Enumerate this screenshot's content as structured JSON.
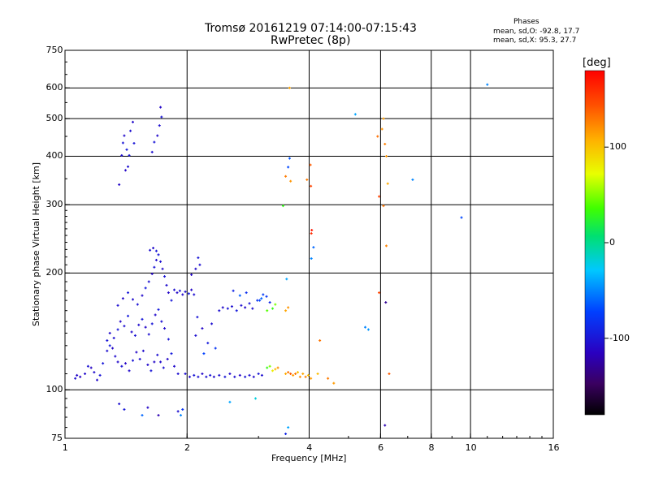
{
  "chart_data": {
    "type": "scatter",
    "title": "Tromsø 20161219 07:14:00-07:15:43",
    "subtitle": "RwPretec (8p)",
    "phases": {
      "heading": "Phases",
      "line_o": "mean, sd,O: -92.8, 17.7",
      "line_x": "mean, sd,X:  95.3, 27.7"
    },
    "xlabel": "Frequency [MHz]",
    "ylabel": "Stationary phase Virtual Height [km]",
    "x_scale": "log",
    "y_scale": "log",
    "xlim": [
      1,
      16
    ],
    "ylim": [
      75,
      750
    ],
    "x_ticks": [
      {
        "value": 1,
        "label": "1"
      },
      {
        "value": 2,
        "label": "2"
      },
      {
        "value": 4,
        "label": "4"
      },
      {
        "value": 6,
        "label": "6"
      },
      {
        "value": 8,
        "label": "8"
      },
      {
        "value": 10,
        "label": "10"
      },
      {
        "value": 16,
        "label": "16"
      }
    ],
    "y_ticks": [
      {
        "value": 75,
        "label": "75"
      },
      {
        "value": 100,
        "label": "100"
      },
      {
        "value": 200,
        "label": "200"
      },
      {
        "value": 300,
        "label": "300"
      },
      {
        "value": 400,
        "label": "400"
      },
      {
        "value": 500,
        "label": "500"
      },
      {
        "value": 600,
        "label": "600"
      },
      {
        "value": 750,
        "label": "750"
      }
    ],
    "grid": true,
    "colorbar": {
      "label": "[deg]",
      "range": [
        -180,
        180
      ],
      "ticks": [
        {
          "value": 100,
          "label": "100"
        },
        {
          "value": 0,
          "label": "0"
        },
        {
          "value": -100,
          "label": "-100"
        }
      ],
      "colormap": "rainbow (black-purple-blue-cyan-green-yellow-orange-red)"
    },
    "points": [
      [
        1.06,
        107,
        -105
      ],
      [
        1.07,
        109,
        -110
      ],
      [
        1.09,
        108,
        -112
      ],
      [
        1.12,
        110,
        -108
      ],
      [
        1.14,
        115,
        -102
      ],
      [
        1.16,
        114,
        -112
      ],
      [
        1.18,
        111,
        -106
      ],
      [
        1.2,
        106,
        -108
      ],
      [
        1.22,
        109,
        -100
      ],
      [
        1.24,
        117,
        -98
      ],
      [
        1.27,
        126,
        -104
      ],
      [
        1.29,
        130,
        -96
      ],
      [
        1.31,
        128,
        -110
      ],
      [
        1.33,
        122,
        -106
      ],
      [
        1.35,
        118,
        -108
      ],
      [
        1.38,
        115,
        -102
      ],
      [
        1.41,
        117,
        -112
      ],
      [
        1.44,
        112,
        -108
      ],
      [
        1.47,
        119,
        -100
      ],
      [
        1.5,
        125,
        -110
      ],
      [
        1.53,
        120,
        -104
      ],
      [
        1.56,
        126,
        -106
      ],
      [
        1.6,
        116,
        -108
      ],
      [
        1.63,
        112,
        -100
      ],
      [
        1.66,
        118,
        -110
      ],
      [
        1.69,
        123,
        -104
      ],
      [
        1.72,
        118,
        -108
      ],
      [
        1.75,
        114,
        -102
      ],
      [
        1.79,
        120,
        -110
      ],
      [
        1.83,
        124,
        -96
      ],
      [
        1.86,
        115,
        -108
      ],
      [
        1.9,
        110,
        -104
      ],
      [
        1.27,
        134,
        -100
      ],
      [
        1.29,
        140,
        -108
      ],
      [
        1.32,
        136,
        -104
      ],
      [
        1.35,
        143,
        -98
      ],
      [
        1.37,
        150,
        -110
      ],
      [
        1.4,
        146,
        -104
      ],
      [
        1.43,
        155,
        -96
      ],
      [
        1.46,
        141,
        -108
      ],
      [
        1.49,
        138,
        -102
      ],
      [
        1.52,
        147,
        -106
      ],
      [
        1.55,
        152,
        -98
      ],
      [
        1.58,
        145,
        -110
      ],
      [
        1.61,
        139,
        -104
      ],
      [
        1.64,
        148,
        -100
      ],
      [
        1.67,
        156,
        -108
      ],
      [
        1.7,
        161,
        -96
      ],
      [
        1.73,
        150,
        -104
      ],
      [
        1.76,
        144,
        -108
      ],
      [
        1.8,
        135,
        -100
      ],
      [
        1.35,
        165,
        -104
      ],
      [
        1.39,
        172,
        -110
      ],
      [
        1.43,
        178,
        -98
      ],
      [
        1.47,
        171,
        -106
      ],
      [
        1.51,
        166,
        -102
      ],
      [
        1.55,
        175,
        -108
      ],
      [
        1.58,
        183,
        -96
      ],
      [
        1.61,
        190,
        -104
      ],
      [
        1.64,
        199,
        -110
      ],
      [
        1.66,
        207,
        -100
      ],
      [
        1.68,
        216,
        -106
      ],
      [
        1.7,
        223,
        -98
      ],
      [
        1.72,
        214,
        -104
      ],
      [
        1.74,
        205,
        -108
      ],
      [
        1.76,
        196,
        -100
      ],
      [
        1.78,
        186,
        -106
      ],
      [
        1.8,
        178,
        -110
      ],
      [
        1.83,
        170,
        -98
      ],
      [
        1.62,
        229,
        -104
      ],
      [
        1.65,
        232,
        -108
      ],
      [
        1.68,
        228,
        -100
      ],
      [
        1.86,
        181,
        -104
      ],
      [
        1.89,
        178,
        -110
      ],
      [
        1.92,
        180,
        -100
      ],
      [
        1.95,
        176,
        -108
      ],
      [
        1.98,
        179,
        -104
      ],
      [
        2.02,
        177,
        -96
      ],
      [
        2.05,
        181,
        -110
      ],
      [
        2.08,
        176,
        -104
      ],
      [
        2.1,
        205,
        -108
      ],
      [
        2.13,
        219,
        -100
      ],
      [
        2.15,
        210,
        -104
      ],
      [
        2.05,
        198,
        -110
      ],
      [
        1.38,
        402,
        -104
      ],
      [
        1.39,
        433,
        -100
      ],
      [
        1.4,
        452,
        -108
      ],
      [
        1.42,
        416,
        -96
      ],
      [
        1.43,
        376,
        -104
      ],
      [
        1.41,
        368,
        -110
      ],
      [
        1.44,
        402,
        -100
      ],
      [
        1.45,
        465,
        -104
      ],
      [
        1.47,
        490,
        -108
      ],
      [
        1.48,
        432,
        -100
      ],
      [
        1.36,
        338,
        -110
      ],
      [
        1.64,
        410,
        -104
      ],
      [
        1.66,
        435,
        -100
      ],
      [
        1.69,
        452,
        -108
      ],
      [
        1.71,
        480,
        -104
      ],
      [
        1.72,
        535,
        -110
      ],
      [
        1.73,
        505,
        -100
      ],
      [
        1.98,
        110,
        -104
      ],
      [
        2.03,
        108,
        -108
      ],
      [
        2.08,
        109,
        -100
      ],
      [
        2.13,
        108,
        -104
      ],
      [
        2.18,
        110,
        -110
      ],
      [
        2.23,
        108,
        -104
      ],
      [
        2.28,
        109,
        -100
      ],
      [
        2.33,
        108,
        -108
      ],
      [
        2.4,
        109,
        -104
      ],
      [
        2.48,
        108,
        -100
      ],
      [
        2.55,
        110,
        -108
      ],
      [
        2.62,
        108,
        -104
      ],
      [
        2.7,
        109,
        -110
      ],
      [
        2.78,
        108,
        -100
      ],
      [
        2.85,
        109,
        -104
      ],
      [
        2.92,
        108,
        -108
      ],
      [
        3.0,
        110,
        -100
      ],
      [
        3.06,
        109,
        -104
      ],
      [
        2.1,
        138,
        -104
      ],
      [
        2.18,
        144,
        -110
      ],
      [
        2.25,
        132,
        -96
      ],
      [
        2.3,
        148,
        -104
      ],
      [
        2.35,
        128,
        -80
      ],
      [
        2.2,
        124,
        -72
      ],
      [
        2.12,
        154,
        -100
      ],
      [
        2.4,
        160,
        -104
      ],
      [
        2.45,
        163,
        -108
      ],
      [
        2.52,
        162,
        -100
      ],
      [
        2.58,
        164,
        -104
      ],
      [
        2.65,
        160,
        -96
      ],
      [
        2.72,
        165,
        -104
      ],
      [
        2.78,
        163,
        -110
      ],
      [
        2.85,
        167,
        -100
      ],
      [
        2.9,
        162,
        -104
      ],
      [
        2.98,
        170,
        -82
      ],
      [
        3.02,
        170,
        -70
      ],
      [
        3.08,
        176,
        -76
      ],
      [
        3.14,
        174,
        -80
      ],
      [
        3.2,
        168,
        -88
      ],
      [
        3.25,
        162,
        30
      ],
      [
        3.3,
        166,
        48
      ],
      [
        3.15,
        160,
        40
      ],
      [
        3.05,
        172,
        -60
      ],
      [
        2.8,
        178,
        -84
      ],
      [
        2.7,
        175,
        -62
      ],
      [
        2.6,
        180,
        -90
      ],
      [
        3.15,
        114,
        30
      ],
      [
        3.2,
        115,
        50
      ],
      [
        3.25,
        112,
        80
      ],
      [
        3.3,
        113,
        100
      ],
      [
        3.35,
        114,
        120
      ],
      [
        3.5,
        110,
        110
      ],
      [
        3.55,
        111,
        130
      ],
      [
        3.6,
        110,
        140
      ],
      [
        3.65,
        109,
        115
      ],
      [
        3.7,
        110,
        130
      ],
      [
        3.75,
        111,
        100
      ],
      [
        3.8,
        108,
        120
      ],
      [
        3.86,
        110,
        112
      ],
      [
        3.92,
        108,
        126
      ],
      [
        3.98,
        109,
        104
      ],
      [
        4.04,
        107,
        116
      ],
      [
        4.2,
        110,
        102
      ],
      [
        4.45,
        107,
        128
      ],
      [
        4.6,
        104,
        116
      ],
      [
        3.5,
        160,
        112
      ],
      [
        3.55,
        163,
        118
      ],
      [
        3.52,
        193,
        -40
      ],
      [
        4.05,
        218,
        -50
      ],
      [
        4.1,
        233,
        -60
      ],
      [
        4.25,
        134,
        130
      ],
      [
        4.05,
        253,
        160
      ],
      [
        4.06,
        258,
        170
      ],
      [
        4.04,
        335,
        150
      ],
      [
        4.03,
        380,
        140
      ],
      [
        3.95,
        348,
        128
      ],
      [
        3.5,
        355,
        128
      ],
      [
        3.6,
        345,
        118
      ],
      [
        3.55,
        375,
        -70
      ],
      [
        3.58,
        395,
        -65
      ],
      [
        3.45,
        298,
        30
      ],
      [
        3.58,
        600,
        112
      ],
      [
        5.2,
        513,
        -40
      ],
      [
        5.9,
        450,
        132
      ],
      [
        6.05,
        470,
        120
      ],
      [
        6.1,
        500,
        115
      ],
      [
        6.15,
        430,
        126
      ],
      [
        6.2,
        400,
        118
      ],
      [
        6.25,
        340,
        110
      ],
      [
        6.1,
        298,
        130
      ],
      [
        5.95,
        315,
        150
      ],
      [
        6.2,
        235,
        125
      ],
      [
        5.95,
        178,
        150
      ],
      [
        6.18,
        168,
        -130
      ],
      [
        6.3,
        110,
        140
      ],
      [
        5.5,
        145,
        -50
      ],
      [
        5.6,
        143,
        -45
      ],
      [
        7.2,
        348,
        -50
      ],
      [
        9.5,
        278,
        -70
      ],
      [
        11.0,
        612,
        -50
      ],
      [
        1.36,
        92,
        -104
      ],
      [
        1.4,
        89,
        -98
      ],
      [
        1.55,
        86,
        -60
      ],
      [
        1.6,
        90,
        -110
      ],
      [
        1.7,
        86,
        -120
      ],
      [
        1.9,
        88,
        -104
      ],
      [
        1.95,
        89,
        -80
      ],
      [
        1.93,
        86,
        -50
      ],
      [
        2.55,
        93,
        -40
      ],
      [
        2.95,
        95,
        -20
      ],
      [
        3.55,
        80,
        -40
      ],
      [
        3.5,
        77,
        -90
      ],
      [
        6.15,
        81,
        -120
      ]
    ]
  }
}
